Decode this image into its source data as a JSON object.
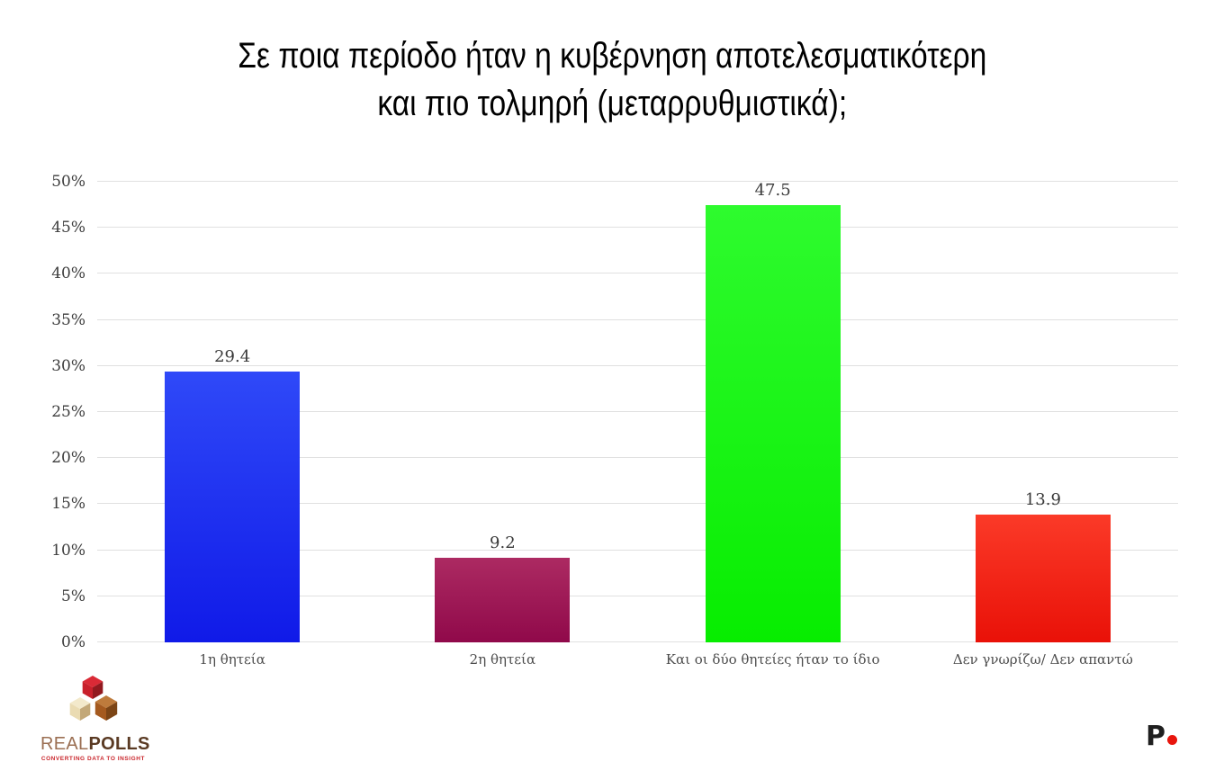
{
  "title": {
    "line1": "Σε ποια περίοδο ήταν η κυβέρνηση αποτελεσματικότερη",
    "line2": "και πιο τολμηρή (μεταρρυθμιστικά);"
  },
  "chart_data": {
    "type": "bar",
    "categories": [
      "1η θητεία",
      "2η θητεία",
      "Και οι δύο θητείες ήταν το ίδιο",
      "Δεν γνωρίζω/ Δεν απαντώ"
    ],
    "values": [
      29.4,
      9.2,
      47.5,
      13.9
    ],
    "series": [
      {
        "name": "",
        "values": [
          29.4,
          9.2,
          47.5,
          13.9
        ]
      }
    ],
    "bar_gradient_top": [
      "#2f49f8",
      "#ac2a62",
      "#2efb2e",
      "#fb3a28"
    ],
    "bar_gradient_bottom": [
      "#101ae8",
      "#90094a",
      "#07ed00",
      "#e91108"
    ],
    "title": "Σε ποια περίοδο ήταν η κυβέρνηση αποτελεσματικότερη και πιο τολμηρή (μεταρρυθμιστικά);",
    "xlabel": "",
    "ylabel": "",
    "ylim": [
      0,
      50
    ],
    "ytick_step": 5,
    "yticks": [
      "0%",
      "5%",
      "10%",
      "15%",
      "20%",
      "25%",
      "30%",
      "35%",
      "40%",
      "45%",
      "50%"
    ],
    "grid": true,
    "grid_color": "#e0e0e0",
    "legend": "none"
  },
  "branding": {
    "left_logo": {
      "name_light": "REAL",
      "name_bold": "POLLS",
      "tagline": "CONVERTING DATA TO INSIGHT",
      "colors": {
        "name_light": "#9b6f53",
        "name_bold": "#5a3a23",
        "tagline": "#c9252b",
        "cube_red": "#c8202b",
        "cube_cream": "#eadbb2",
        "cube_brown": "#a55a1f"
      }
    },
    "right_logo": {
      "letter": "P",
      "dot_color": "#e8150d"
    }
  }
}
